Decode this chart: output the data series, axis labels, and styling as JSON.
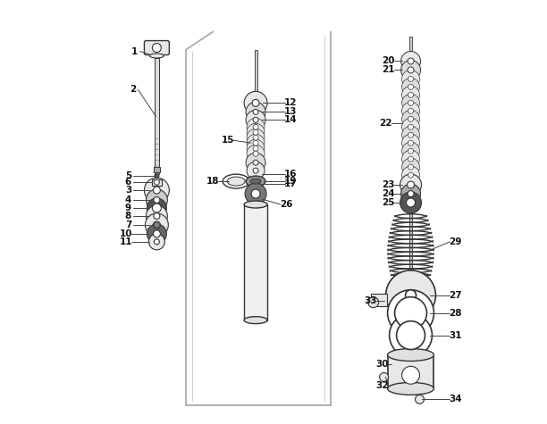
{
  "bg_color": "#ffffff",
  "lc": "#333333",
  "gc": "#888888",
  "fl": "#e8e8e8",
  "dk": "#555555",
  "figsize": [
    6.12,
    4.75
  ],
  "dpi": 100,
  "xlim": [
    0,
    612
  ],
  "ylim": [
    0,
    475
  ]
}
